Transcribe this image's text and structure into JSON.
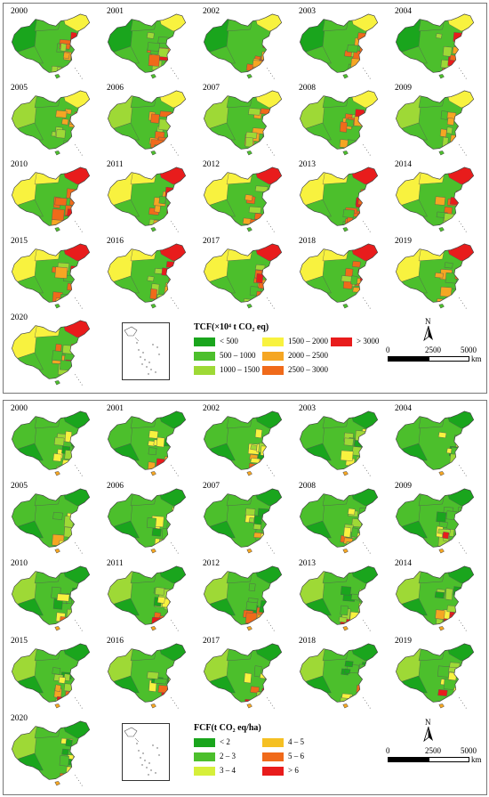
{
  "palette": [
    "#1aa51d",
    "#4cbf2c",
    "#9ed936",
    "#f8f23f",
    "#f5a623",
    "#f06a1a",
    "#e81c1c"
  ],
  "top": {
    "years": [
      "2000",
      "2001",
      "2002",
      "2003",
      "2004",
      "2005",
      "2006",
      "2007",
      "2008",
      "2009",
      "2010",
      "2011",
      "2012",
      "2013",
      "2014",
      "2015",
      "2016",
      "2017",
      "2018",
      "2019",
      "2020"
    ],
    "legend_title": "TCF(×10⁴ t CO₂ eq)",
    "legend": [
      {
        "label": "< 500",
        "color": "#1aa51d"
      },
      {
        "label": "500 – 1000",
        "color": "#4cbf2c"
      },
      {
        "label": "1000 – 1500",
        "color": "#9ed936"
      },
      {
        "label": "1500 – 2000",
        "color": "#f8f23f"
      },
      {
        "label": "2000 – 2500",
        "color": "#f5a623"
      },
      {
        "label": "2500 – 3000",
        "color": "#f06a1a"
      },
      {
        "label": "> 3000",
        "color": "#e81c1c"
      }
    ],
    "north": "N",
    "scale_ticks": [
      "0",
      "2500",
      "5000"
    ],
    "scale_unit": "km"
  },
  "bottom": {
    "years": [
      "2000",
      "2001",
      "2002",
      "2003",
      "2004",
      "2005",
      "2006",
      "2007",
      "2008",
      "2009",
      "2010",
      "2011",
      "2012",
      "2013",
      "2014",
      "2015",
      "2016",
      "2017",
      "2018",
      "2019",
      "2020"
    ],
    "legend_title": "FCF(t CO₂ eq/ha)",
    "legend": [
      {
        "label": "< 2",
        "color": "#1aa51d"
      },
      {
        "label": "2 – 3",
        "color": "#4cbf2c"
      },
      {
        "label": "3 – 4",
        "color": "#d6ef3a"
      },
      {
        "label": "4 – 5",
        "color": "#f5c023"
      },
      {
        "label": "5 – 6",
        "color": "#f06a1a"
      },
      {
        "label": "> 6",
        "color": "#e81c1c"
      }
    ],
    "north": "N",
    "scale_ticks": [
      "0",
      "2500",
      "5000"
    ],
    "scale_unit": "km"
  }
}
